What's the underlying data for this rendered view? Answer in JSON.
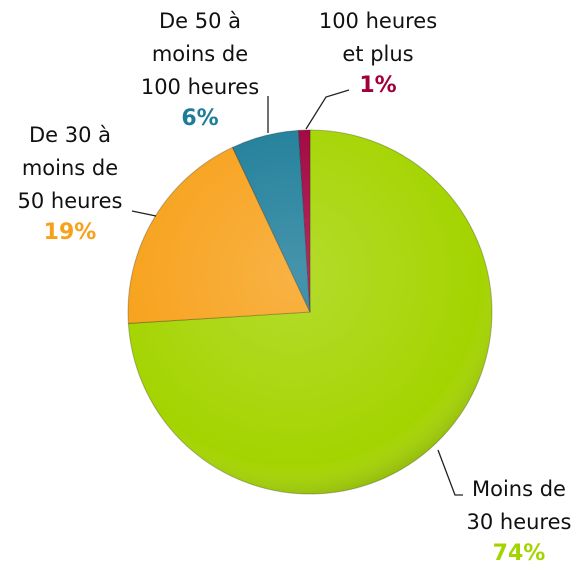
{
  "chart_data": {
    "type": "pie",
    "categories": [
      "Moins de\n30 heures",
      "De 30 à\nmoins de\n50 heures",
      "De 50 à\nmoins de\n100 heures",
      "100 heures\net plus"
    ],
    "values": [
      74,
      19,
      6,
      1
    ],
    "value_labels": [
      "74%",
      "19%",
      "6%",
      "1%"
    ],
    "colors": [
      "#a4d400",
      "#f7a11a",
      "#1d7d99",
      "#a0003c"
    ]
  }
}
